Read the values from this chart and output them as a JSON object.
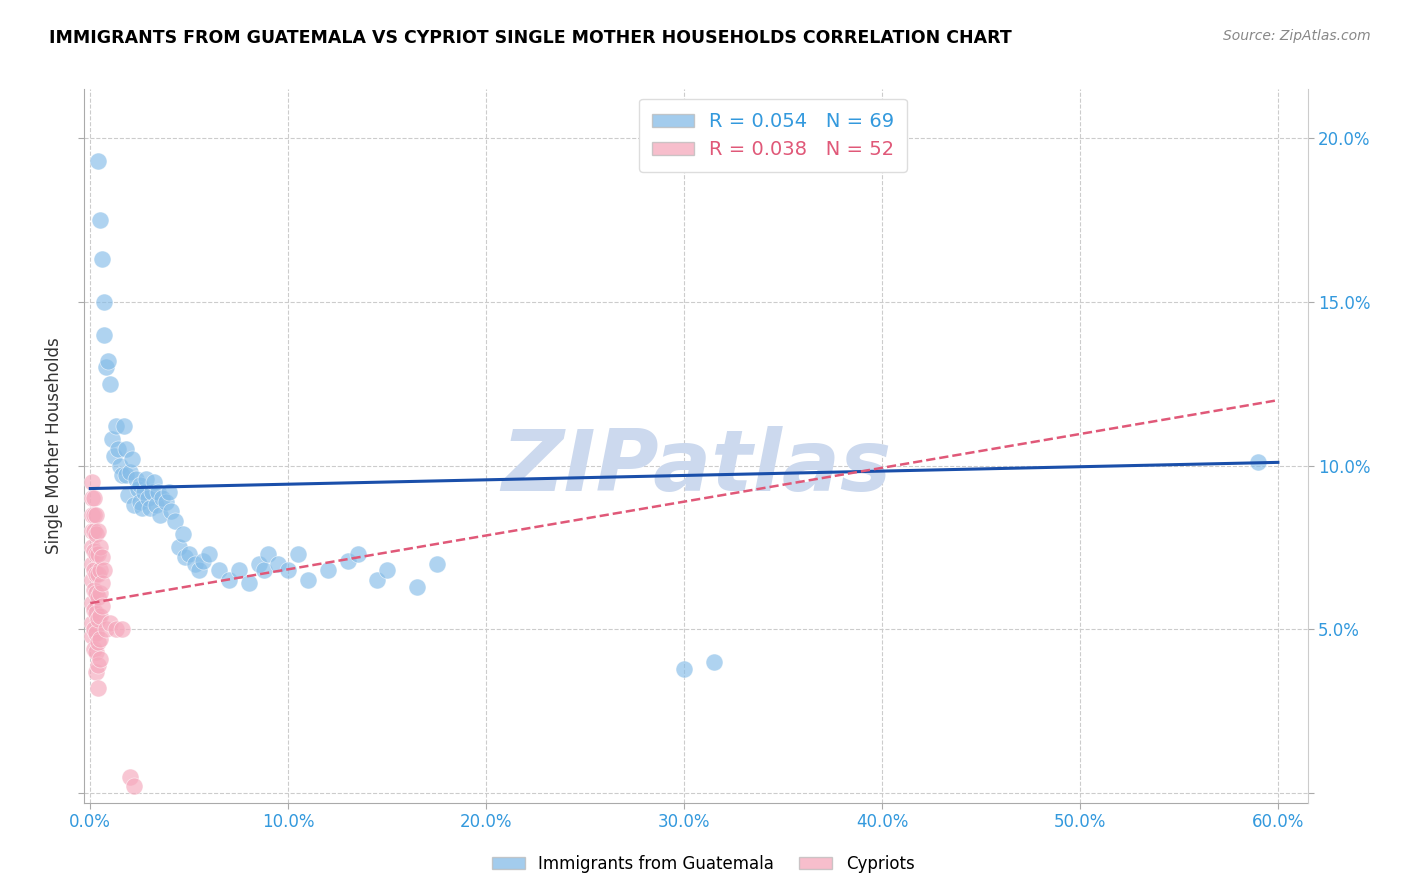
{
  "title": "IMMIGRANTS FROM GUATEMALA VS CYPRIOT SINGLE MOTHER HOUSEHOLDS CORRELATION CHART",
  "source": "Source: ZipAtlas.com",
  "ylabel": "Single Mother Households",
  "legend_label1": "Immigrants from Guatemala",
  "legend_label2": "Cypriots",
  "legend_r1": "R = 0.054",
  "legend_n1": "N = 69",
  "legend_r2": "R = 0.038",
  "legend_n2": "N = 52",
  "xlim": [
    -0.003,
    0.615
  ],
  "ylim": [
    -0.003,
    0.215
  ],
  "xticks": [
    0.0,
    0.1,
    0.2,
    0.3,
    0.4,
    0.5,
    0.6
  ],
  "xticklabels": [
    "0.0%",
    "10.0%",
    "20.0%",
    "30.0%",
    "40.0%",
    "50.0%",
    "60.0%"
  ],
  "yticks": [
    0.0,
    0.05,
    0.1,
    0.15,
    0.2
  ],
  "yticklabels": [
    "",
    "5.0%",
    "10.0%",
    "15.0%",
    "20.0%"
  ],
  "blue_color": "#85bce8",
  "pink_color": "#f5a8bc",
  "blue_line_color": "#1a4faa",
  "pink_line_color": "#e05878",
  "tick_color": "#3399dd",
  "watermark_color": "#ccd9ee",
  "grid_color": "#cccccc",
  "blue_scatter": [
    [
      0.004,
      0.193
    ],
    [
      0.005,
      0.175
    ],
    [
      0.006,
      0.163
    ],
    [
      0.007,
      0.15
    ],
    [
      0.007,
      0.14
    ],
    [
      0.008,
      0.13
    ],
    [
      0.009,
      0.132
    ],
    [
      0.01,
      0.125
    ],
    [
      0.011,
      0.108
    ],
    [
      0.012,
      0.103
    ],
    [
      0.013,
      0.112
    ],
    [
      0.014,
      0.105
    ],
    [
      0.015,
      0.1
    ],
    [
      0.016,
      0.097
    ],
    [
      0.017,
      0.112
    ],
    [
      0.018,
      0.097
    ],
    [
      0.018,
      0.105
    ],
    [
      0.019,
      0.091
    ],
    [
      0.02,
      0.098
    ],
    [
      0.021,
      0.102
    ],
    [
      0.022,
      0.088
    ],
    [
      0.023,
      0.096
    ],
    [
      0.024,
      0.093
    ],
    [
      0.025,
      0.089
    ],
    [
      0.025,
      0.094
    ],
    [
      0.026,
      0.087
    ],
    [
      0.027,
      0.092
    ],
    [
      0.028,
      0.096
    ],
    [
      0.029,
      0.09
    ],
    [
      0.03,
      0.087
    ],
    [
      0.031,
      0.092
    ],
    [
      0.032,
      0.095
    ],
    [
      0.033,
      0.088
    ],
    [
      0.034,
      0.092
    ],
    [
      0.035,
      0.085
    ],
    [
      0.036,
      0.09
    ],
    [
      0.038,
      0.089
    ],
    [
      0.04,
      0.092
    ],
    [
      0.041,
      0.086
    ],
    [
      0.043,
      0.083
    ],
    [
      0.045,
      0.075
    ],
    [
      0.047,
      0.079
    ],
    [
      0.048,
      0.072
    ],
    [
      0.05,
      0.073
    ],
    [
      0.053,
      0.07
    ],
    [
      0.055,
      0.068
    ],
    [
      0.057,
      0.071
    ],
    [
      0.06,
      0.073
    ],
    [
      0.065,
      0.068
    ],
    [
      0.07,
      0.065
    ],
    [
      0.075,
      0.068
    ],
    [
      0.08,
      0.064
    ],
    [
      0.085,
      0.07
    ],
    [
      0.088,
      0.068
    ],
    [
      0.09,
      0.073
    ],
    [
      0.095,
      0.07
    ],
    [
      0.1,
      0.068
    ],
    [
      0.105,
      0.073
    ],
    [
      0.11,
      0.065
    ],
    [
      0.12,
      0.068
    ],
    [
      0.13,
      0.071
    ],
    [
      0.135,
      0.073
    ],
    [
      0.145,
      0.065
    ],
    [
      0.15,
      0.068
    ],
    [
      0.165,
      0.063
    ],
    [
      0.175,
      0.07
    ],
    [
      0.3,
      0.038
    ],
    [
      0.315,
      0.04
    ],
    [
      0.59,
      0.101
    ]
  ],
  "pink_scatter": [
    [
      0.001,
      0.095
    ],
    [
      0.001,
      0.09
    ],
    [
      0.001,
      0.085
    ],
    [
      0.001,
      0.08
    ],
    [
      0.001,
      0.075
    ],
    [
      0.001,
      0.07
    ],
    [
      0.001,
      0.065
    ],
    [
      0.001,
      0.058
    ],
    [
      0.001,
      0.052
    ],
    [
      0.001,
      0.048
    ],
    [
      0.002,
      0.09
    ],
    [
      0.002,
      0.085
    ],
    [
      0.002,
      0.08
    ],
    [
      0.002,
      0.074
    ],
    [
      0.002,
      0.068
    ],
    [
      0.002,
      0.062
    ],
    [
      0.002,
      0.056
    ],
    [
      0.002,
      0.05
    ],
    [
      0.002,
      0.044
    ],
    [
      0.003,
      0.085
    ],
    [
      0.003,
      0.079
    ],
    [
      0.003,
      0.073
    ],
    [
      0.003,
      0.067
    ],
    [
      0.003,
      0.061
    ],
    [
      0.003,
      0.055
    ],
    [
      0.003,
      0.049
    ],
    [
      0.003,
      0.043
    ],
    [
      0.003,
      0.037
    ],
    [
      0.004,
      0.08
    ],
    [
      0.004,
      0.073
    ],
    [
      0.004,
      0.067
    ],
    [
      0.004,
      0.06
    ],
    [
      0.004,
      0.053
    ],
    [
      0.004,
      0.046
    ],
    [
      0.004,
      0.039
    ],
    [
      0.004,
      0.032
    ],
    [
      0.005,
      0.075
    ],
    [
      0.005,
      0.068
    ],
    [
      0.005,
      0.061
    ],
    [
      0.005,
      0.054
    ],
    [
      0.005,
      0.047
    ],
    [
      0.005,
      0.041
    ],
    [
      0.006,
      0.072
    ],
    [
      0.006,
      0.064
    ],
    [
      0.006,
      0.057
    ],
    [
      0.007,
      0.068
    ],
    [
      0.008,
      0.05
    ],
    [
      0.01,
      0.052
    ],
    [
      0.013,
      0.05
    ],
    [
      0.016,
      0.05
    ],
    [
      0.02,
      0.005
    ],
    [
      0.022,
      0.002
    ]
  ],
  "blue_trend_x": [
    0.0,
    0.6
  ],
  "blue_trend_y": [
    0.093,
    0.101
  ],
  "pink_trend_x": [
    0.0,
    0.6
  ],
  "pink_trend_y": [
    0.058,
    0.12
  ]
}
